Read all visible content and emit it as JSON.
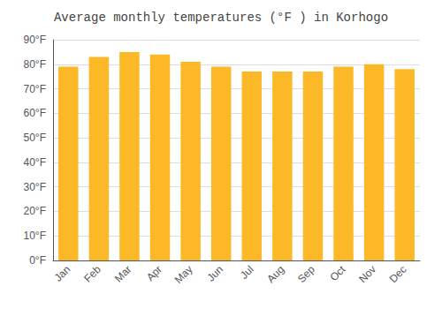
{
  "chart_data": {
    "type": "bar",
    "title": "Average monthly temperatures (°F ) in Korhogo",
    "categories": [
      "Jan",
      "Feb",
      "Mar",
      "Apr",
      "May",
      "Jun",
      "Jul",
      "Aug",
      "Sep",
      "Oct",
      "Nov",
      "Dec"
    ],
    "values": [
      79,
      83,
      85,
      84,
      81,
      79,
      77,
      77,
      77,
      79,
      80,
      78
    ],
    "color": "#FDB827",
    "ylim": [
      0,
      90
    ],
    "yticks": [
      {
        "value": 0,
        "label": "0°F"
      },
      {
        "value": 10,
        "label": "10°F"
      },
      {
        "value": 20,
        "label": "20°F"
      },
      {
        "value": 30,
        "label": "30°F"
      },
      {
        "value": 40,
        "label": "40°F"
      },
      {
        "value": 50,
        "label": "50°F"
      },
      {
        "value": 60,
        "label": "60°F"
      },
      {
        "value": 70,
        "label": "70°F"
      },
      {
        "value": 80,
        "label": "80°F"
      },
      {
        "value": 90,
        "label": "90°F"
      }
    ],
    "grid": true
  }
}
